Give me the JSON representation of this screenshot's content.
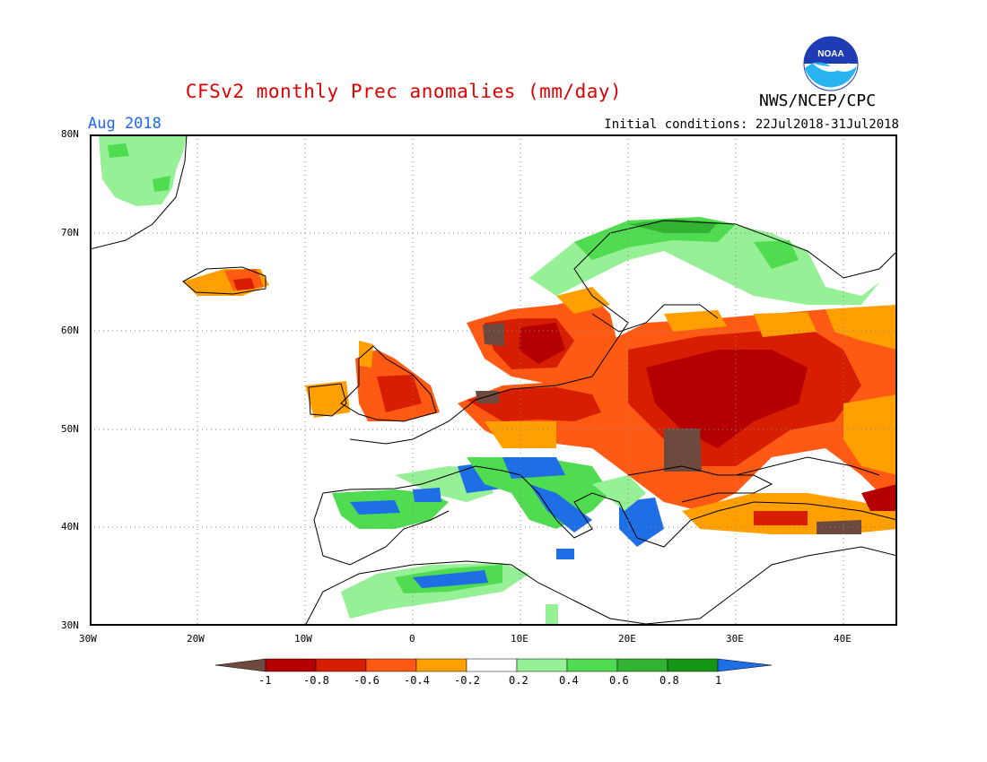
{
  "header": {
    "title": "CFSv2 monthly Prec anomalies (mm/day)",
    "org": "NWS/NCEP/CPC",
    "month": "Aug 2018",
    "initial_conditions": "Initial conditions: 22Jul2018-31Jul2018",
    "logo_text": "NOAA"
  },
  "map": {
    "region": "Europe",
    "lon_range": [
      -30,
      45
    ],
    "lat_range": [
      30,
      80
    ],
    "lat_labels": [
      "80N",
      "70N",
      "60N",
      "50N",
      "40N",
      "30N"
    ],
    "lon_labels": [
      "30W",
      "20W",
      "10W",
      "0",
      "10E",
      "20E",
      "30E",
      "40E"
    ]
  },
  "legend": {
    "tick_labels": [
      "-1",
      "-0.8",
      "-0.6",
      "-0.4",
      "-0.2",
      "0.2",
      "0.4",
      "0.6",
      "0.8",
      "1"
    ],
    "colors": {
      "lt_neg1": "#6e4a3e",
      "neg1_neg08": "#b40000",
      "neg08_neg06": "#d71e00",
      "neg06_neg04": "#ff5a14",
      "neg04_neg02": "#ffa000",
      "neg02_02": "#ffffff",
      "p02_p04": "#96f096",
      "p04_p06": "#50dc50",
      "p06_p08": "#32b432",
      "p08_p1": "#149614",
      "gt_1": "#1e6ee6"
    }
  }
}
